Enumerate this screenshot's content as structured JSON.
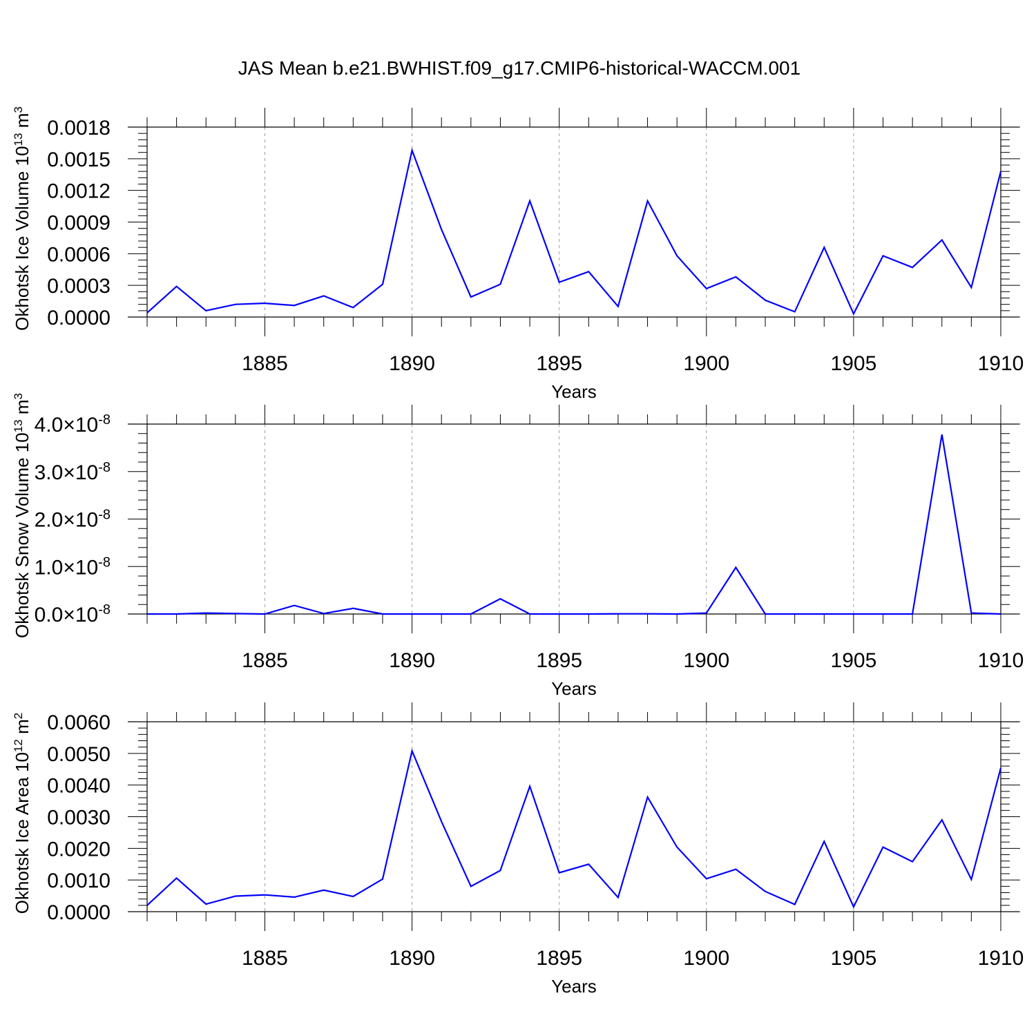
{
  "chart_data": [
    {
      "type": "line",
      "title": "JAS Mean b.e21.BWHIST.f09_g17.CMIP6-historical-WACCM.001",
      "ylabel": "Okhotsk Ice Volume",
      "ylabel_unit_base": "10",
      "ylabel_unit_exp": "13",
      "ylabel_unit_tail": "m",
      "ylabel_unit_tail_exp": "3",
      "xlabel": "Years",
      "xlim": [
        1881,
        1910
      ],
      "ylim": [
        0,
        0.0018
      ],
      "x_ticks": [
        "1885",
        "1890",
        "1895",
        "1900",
        "1905",
        "1910"
      ],
      "y_ticks": [
        "0.0000",
        "0.0003",
        "0.0006",
        "0.0009",
        "0.0012",
        "0.0015",
        "0.0018"
      ],
      "grid_x": true,
      "line_color": "#0000ff",
      "series": [
        {
          "name": "Okhotsk Ice Volume",
          "x": [
            1881,
            1882,
            1883,
            1884,
            1885,
            1886,
            1887,
            1888,
            1889,
            1890,
            1891,
            1892,
            1893,
            1894,
            1895,
            1896,
            1897,
            1898,
            1899,
            1900,
            1901,
            1902,
            1903,
            1904,
            1905,
            1906,
            1907,
            1908,
            1909,
            1910
          ],
          "values": [
            4e-05,
            0.00029,
            6e-05,
            0.00012,
            0.00013,
            0.00011,
            0.0002,
            9e-05,
            0.00031,
            0.00158,
            0.00083,
            0.00019,
            0.00031,
            0.0011,
            0.00033,
            0.00043,
            0.0001,
            0.0011,
            0.00058,
            0.00027,
            0.00038,
            0.00016,
            5e-05,
            0.00066,
            3e-05,
            0.00058,
            0.00047,
            0.00073,
            0.00028,
            0.00138
          ]
        }
      ]
    },
    {
      "type": "line",
      "ylabel": "Okhotsk Snow Volume",
      "ylabel_unit_base": "10",
      "ylabel_unit_exp": "13",
      "ylabel_unit_tail": "m",
      "ylabel_unit_tail_exp": "3",
      "xlabel": "Years",
      "xlim": [
        1881,
        1910
      ],
      "ylim": [
        0,
        4e-08
      ],
      "x_ticks": [
        "1885",
        "1890",
        "1895",
        "1900",
        "1905",
        "1910"
      ],
      "y_ticks": [
        "0.0",
        "1.0",
        "2.0",
        "3.0",
        "4.0"
      ],
      "y_tick_multiplier": "×10",
      "y_tick_exponent": "-8",
      "grid_x": true,
      "line_color": "#0000ff",
      "series": [
        {
          "name": "Okhotsk Snow Volume",
          "x": [
            1881,
            1882,
            1883,
            1884,
            1885,
            1886,
            1887,
            1888,
            1889,
            1890,
            1891,
            1892,
            1893,
            1894,
            1895,
            1896,
            1897,
            1898,
            1899,
            1900,
            1901,
            1902,
            1903,
            1904,
            1905,
            1906,
            1907,
            1908,
            1909,
            1910
          ],
          "values": [
            0.0,
            0.0,
            2e-10,
            1e-10,
            0.0,
            1.8e-09,
            1e-10,
            1.2e-09,
            0.0,
            0.0,
            0.0,
            0.0,
            3.2e-09,
            0.0,
            0.0,
            0.0,
            5e-11,
            5e-11,
            0.0,
            2e-10,
            9.8e-09,
            0.0,
            0.0,
            0.0,
            0.0,
            0.0,
            0.0,
            3.78e-08,
            2e-10,
            0.0
          ]
        }
      ]
    },
    {
      "type": "line",
      "ylabel": "Okhotsk Ice Area",
      "ylabel_unit_base": "10",
      "ylabel_unit_exp": "12",
      "ylabel_unit_tail": "m",
      "ylabel_unit_tail_exp": "2",
      "xlabel": "Years",
      "xlim": [
        1881,
        1910
      ],
      "ylim": [
        0,
        0.006
      ],
      "x_ticks": [
        "1885",
        "1890",
        "1895",
        "1900",
        "1905",
        "1910"
      ],
      "y_ticks": [
        "0.0000",
        "0.0010",
        "0.0020",
        "0.0030",
        "0.0040",
        "0.0050",
        "0.0060"
      ],
      "grid_x": true,
      "line_color": "#0000ff",
      "series": [
        {
          "name": "Okhotsk Ice Area",
          "x": [
            1881,
            1882,
            1883,
            1884,
            1885,
            1886,
            1887,
            1888,
            1889,
            1890,
            1891,
            1892,
            1893,
            1894,
            1895,
            1896,
            1897,
            1898,
            1899,
            1900,
            1901,
            1902,
            1903,
            1904,
            1905,
            1906,
            1907,
            1908,
            1909,
            1910
          ],
          "values": [
            0.0002,
            0.00106,
            0.00024,
            0.00049,
            0.00053,
            0.00046,
            0.00068,
            0.00048,
            0.00103,
            0.00508,
            0.00285,
            0.0008,
            0.0013,
            0.00396,
            0.00123,
            0.0015,
            0.00045,
            0.00362,
            0.00204,
            0.00104,
            0.00134,
            0.00064,
            0.00023,
            0.00222,
            0.00015,
            0.00204,
            0.00158,
            0.0029,
            0.00102,
            0.00454
          ]
        }
      ]
    }
  ]
}
